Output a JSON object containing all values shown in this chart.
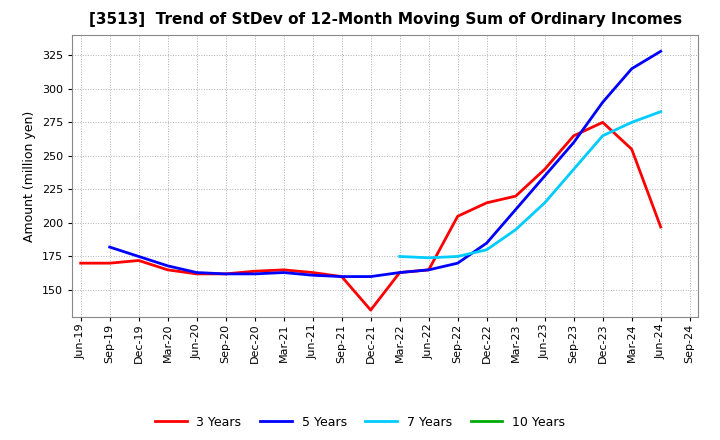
{
  "title": "[3513]  Trend of StDev of 12-Month Moving Sum of Ordinary Incomes",
  "ylabel": "Amount (million yen)",
  "background_color": "#ffffff",
  "grid_color": "#b0b0b0",
  "title_fontsize": 11,
  "axis_label_fontsize": 9,
  "tick_fontsize": 8,
  "ylim": [
    130,
    340
  ],
  "yticks": [
    150,
    175,
    200,
    225,
    250,
    275,
    300,
    325
  ],
  "x_labels": [
    "Jun-19",
    "Sep-19",
    "Dec-19",
    "Mar-20",
    "Jun-20",
    "Sep-20",
    "Dec-20",
    "Mar-21",
    "Jun-21",
    "Sep-21",
    "Dec-21",
    "Mar-22",
    "Jun-22",
    "Sep-22",
    "Dec-22",
    "Mar-23",
    "Jun-23",
    "Sep-23",
    "Dec-23",
    "Mar-24",
    "Jun-24",
    "Sep-24"
  ],
  "series": {
    "3 Years": {
      "color": "#ff0000",
      "linewidth": 2.0,
      "data": [
        170,
        170,
        172,
        165,
        162,
        162,
        164,
        165,
        163,
        160,
        135,
        163,
        165,
        205,
        215,
        220,
        240,
        265,
        275,
        255,
        197,
        null
      ]
    },
    "5 Years": {
      "color": "#0000ff",
      "linewidth": 2.0,
      "data": [
        null,
        182,
        175,
        168,
        163,
        162,
        162,
        163,
        161,
        160,
        160,
        163,
        165,
        170,
        185,
        210,
        235,
        260,
        290,
        315,
        328,
        null
      ]
    },
    "7 Years": {
      "color": "#00ccff",
      "linewidth": 2.0,
      "data": [
        null,
        null,
        null,
        null,
        null,
        null,
        null,
        null,
        null,
        null,
        null,
        175,
        174,
        175,
        180,
        195,
        215,
        240,
        265,
        275,
        283,
        null
      ]
    },
    "10 Years": {
      "color": "#00aa00",
      "linewidth": 2.0,
      "data": [
        null,
        null,
        null,
        null,
        null,
        null,
        null,
        null,
        null,
        null,
        null,
        null,
        null,
        null,
        null,
        null,
        null,
        null,
        null,
        null,
        null,
        null
      ]
    }
  },
  "legend_order": [
    "3 Years",
    "5 Years",
    "7 Years",
    "10 Years"
  ]
}
